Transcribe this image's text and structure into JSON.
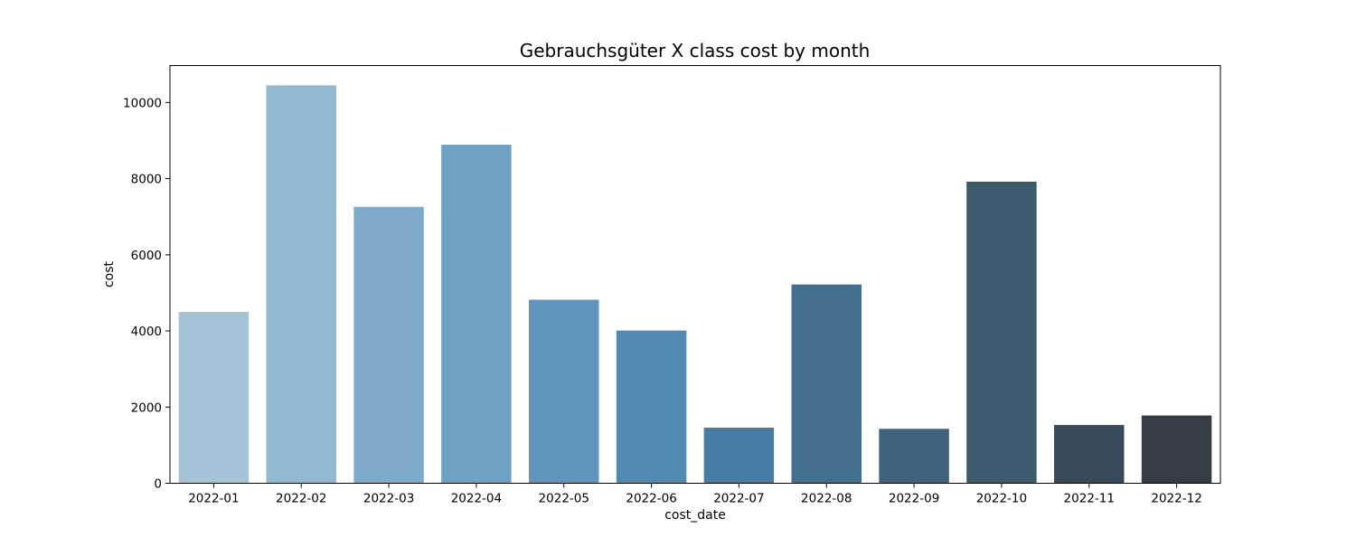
{
  "chart_data": {
    "type": "bar",
    "title": "Gebrauchsgüter X class cost by month",
    "xlabel": "cost_date",
    "ylabel": "cost",
    "categories": [
      "2022-01",
      "2022-02",
      "2022-03",
      "2022-04",
      "2022-05",
      "2022-06",
      "2022-07",
      "2022-08",
      "2022-09",
      "2022-10",
      "2022-11",
      "2022-12"
    ],
    "values": [
      4500,
      10450,
      7260,
      8890,
      4820,
      4010,
      1460,
      5220,
      1430,
      7920,
      1530,
      1780
    ],
    "ylim": [
      0,
      10970
    ],
    "yticks": [
      0,
      2000,
      4000,
      6000,
      8000,
      10000
    ],
    "grid": false,
    "legend": "none",
    "colors": [
      "#a4c3d7",
      "#93b8d2",
      "#7fabcb",
      "#6fa1c3",
      "#6195bb",
      "#5189b1",
      "#477da5",
      "#44708f",
      "#40637d",
      "#3d5a6e",
      "#384a59",
      "#353c44"
    ]
  }
}
